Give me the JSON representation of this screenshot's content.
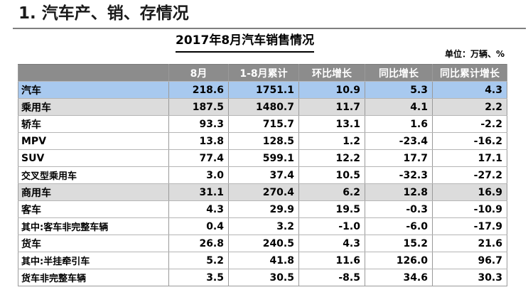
{
  "page": {
    "title": "1. 汽车产、销、存情况",
    "table_title": "2017年8月汽车销售情况",
    "unit_note": "单位：万辆、%"
  },
  "table": {
    "headers": [
      "",
      "8月",
      "1-8月累计",
      "环比增长",
      "同比增长",
      "同比累计增长"
    ],
    "rows": [
      {
        "label": "汽车",
        "level": 0,
        "style": "total",
        "values": [
          "218.6",
          "1751.1",
          "10.9",
          "5.3",
          "4.3"
        ]
      },
      {
        "label": "乘用车",
        "level": 1,
        "style": "group",
        "values": [
          "187.5",
          "1480.7",
          "11.7",
          "4.1",
          "2.2"
        ]
      },
      {
        "label": "轿车",
        "level": 2,
        "style": "plain",
        "values": [
          "93.3",
          "715.7",
          "13.1",
          "1.6",
          "-2.2"
        ]
      },
      {
        "label": "MPV",
        "level": 2,
        "style": "plain",
        "values": [
          "13.8",
          "128.5",
          "1.2",
          "-23.4",
          "-16.2"
        ]
      },
      {
        "label": "SUV",
        "level": 2,
        "style": "plain",
        "values": [
          "77.4",
          "599.1",
          "12.2",
          "17.7",
          "17.1"
        ]
      },
      {
        "label": "交叉型乘用车",
        "level": 3,
        "style": "plain",
        "values": [
          "3.0",
          "37.4",
          "10.5",
          "-32.3",
          "-27.2"
        ]
      },
      {
        "label": "商用车",
        "level": 1,
        "style": "group",
        "values": [
          "31.1",
          "270.4",
          "6.2",
          "12.8",
          "16.9"
        ]
      },
      {
        "label": "客车",
        "level": 2,
        "style": "plain",
        "values": [
          "4.3",
          "29.9",
          "19.5",
          "-0.3",
          "-10.9"
        ]
      },
      {
        "label": "其中:客车非完整车辆",
        "level": 3,
        "style": "plain",
        "values": [
          "0.4",
          "3.2",
          "-1.0",
          "-6.0",
          "-17.9"
        ]
      },
      {
        "label": "货车",
        "level": 2,
        "style": "plain",
        "values": [
          "26.8",
          "240.5",
          "4.3",
          "15.2",
          "21.6"
        ]
      },
      {
        "label": "其中:半挂牵引车",
        "level": 3,
        "style": "plain",
        "values": [
          "5.2",
          "41.8",
          "11.6",
          "126.0",
          "96.7"
        ]
      },
      {
        "label": "货车非完整车辆",
        "level": 3,
        "style": "plain",
        "values": [
          "3.5",
          "30.5",
          "-8.5",
          "34.6",
          "30.3"
        ]
      }
    ]
  },
  "colors": {
    "header_bg": "#8c8c8c",
    "total_row_bg": "#a8c9ef",
    "group_row_bg": "#dcdcdc"
  }
}
